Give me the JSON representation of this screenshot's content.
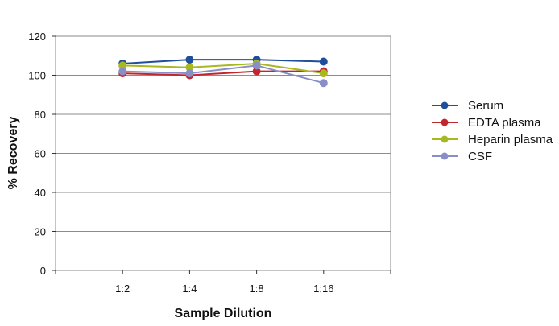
{
  "chart_data": {
    "type": "line",
    "title": "",
    "xlabel": "Sample Dilution",
    "ylabel": "% Recovery",
    "categories": [
      "1:2",
      "1:4",
      "1:8",
      "1:16"
    ],
    "ylim": [
      0,
      120
    ],
    "yticks": [
      0,
      20,
      40,
      60,
      80,
      100,
      120
    ],
    "grid": "horizontal",
    "legend_position": "right",
    "series": [
      {
        "name": "Serum",
        "color": "#1f4e9c",
        "values": [
          106,
          108,
          108,
          107
        ]
      },
      {
        "name": "EDTA plasma",
        "color": "#c0272d",
        "values": [
          101,
          100,
          102,
          102
        ]
      },
      {
        "name": "Heparin plasma",
        "color": "#a8b820",
        "values": [
          105,
          104,
          106,
          101
        ]
      },
      {
        "name": "CSF",
        "color": "#8a8ec8",
        "values": [
          102,
          101,
          105,
          96
        ]
      }
    ]
  }
}
